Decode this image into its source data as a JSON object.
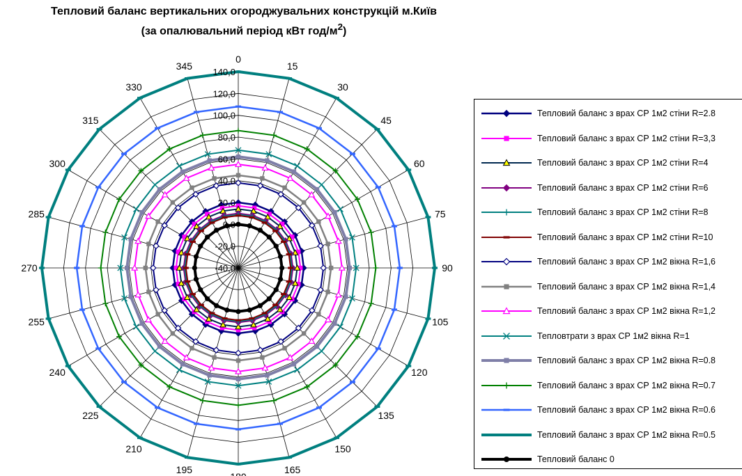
{
  "chart_data": {
    "type": "radar",
    "title": "Тепловий баланс вертикальних огороджувальних конструкцій м.Київ",
    "subtitle_text": "(за опалювальний період кВт год/м",
    "subtitle_sup": "2",
    "subtitle_end": ")",
    "angle_labels": [
      "0",
      "15",
      "30",
      "45",
      "60",
      "75",
      "90",
      "105",
      "120",
      "135",
      "150",
      "165",
      "180",
      "195",
      "210",
      "225",
      "240",
      "255",
      "270",
      "285",
      "300",
      "315",
      "330",
      "345"
    ],
    "rlim": [
      -40,
      140
    ],
    "r_tick_labels": [
      "-40,0",
      "-20,0",
      "0,0",
      "20,0",
      "40,0",
      "60,0",
      "80,0",
      "100,0",
      "120,0",
      "140,0"
    ],
    "grid": true,
    "legend_position": "right",
    "series": [
      {
        "name": "Тепловий баланс з врах СР 1м2 стіни R=2.8",
        "color": "#00007f",
        "marker": "diamond",
        "values": [
          20,
          20,
          20,
          20,
          20,
          20,
          20,
          20,
          20,
          20,
          20,
          20,
          20,
          20,
          20,
          20,
          20,
          20,
          20,
          20,
          20,
          20,
          20,
          20
        ]
      },
      {
        "name": "Тепловий баланс з врах СР 1м2 стіни R=3,3",
        "color": "#ff00ff",
        "marker": "square",
        "values": [
          17,
          17,
          17,
          17,
          17,
          17,
          17,
          17,
          17,
          17,
          17,
          17,
          17,
          17,
          17,
          17,
          17,
          17,
          17,
          17,
          17,
          17,
          17,
          17
        ]
      },
      {
        "name": "Тепловий баланс з врах СР 1м2 стіни R=4",
        "color": "#00284f",
        "marker": "triangle",
        "values": [
          14,
          14,
          14,
          14,
          14,
          14,
          14,
          14,
          14,
          14,
          14,
          14,
          14,
          14,
          14,
          14,
          14,
          14,
          14,
          14,
          14,
          14,
          14,
          14
        ]
      },
      {
        "name": "Тепловий баланс з врах СР 1м2 стіни R=6",
        "color": "#800080",
        "marker": "diamond",
        "values": [
          10,
          10,
          10,
          10,
          10,
          10,
          10,
          10,
          10,
          10,
          10,
          10,
          10,
          10,
          10,
          10,
          10,
          10,
          10,
          10,
          10,
          10,
          10,
          10
        ]
      },
      {
        "name": "Тепловий баланс з врах СР 1м2 стіни R=8",
        "color": "#008080",
        "marker": "plus",
        "values": [
          9,
          9,
          9,
          9,
          9,
          9,
          9,
          9,
          9,
          9,
          9,
          9,
          9,
          9,
          9,
          9,
          9,
          9,
          9,
          9,
          9,
          9,
          9,
          9
        ]
      },
      {
        "name": "Тепловий баланс з врах СР 1м2 стіни R=10",
        "color": "#800000",
        "marker": "dash",
        "values": [
          8,
          8,
          8,
          8,
          8,
          8,
          8,
          8,
          8,
          8,
          8,
          8,
          8,
          8,
          8,
          8,
          8,
          8,
          8,
          8,
          8,
          8,
          8,
          8
        ]
      },
      {
        "name": "Тепловий баланс з врах СР 1м2 вікна R=1,6",
        "color": "#00007f",
        "marker": "diamond-open",
        "values": [
          38,
          38,
          38,
          38,
          38,
          38,
          38,
          38,
          38,
          38,
          38,
          38,
          38,
          38,
          38,
          38,
          38,
          38,
          38,
          38,
          38,
          38,
          38,
          38
        ]
      },
      {
        "name": "Тепловий баланс з врах СР 1м2 вікна R=1,4",
        "color": "#808080",
        "marker": "square",
        "values": [
          45,
          45,
          45,
          45,
          45,
          45,
          45,
          45,
          45,
          45,
          45,
          45,
          45,
          45,
          45,
          45,
          45,
          45,
          45,
          45,
          45,
          45,
          45,
          45
        ]
      },
      {
        "name": "Тепловий баланс з врах СР 1м2 вікна R=1,2",
        "color": "#ff00ff",
        "marker": "triangle-open",
        "values": [
          55,
          55,
          55,
          55,
          55,
          55,
          55,
          55,
          55,
          55,
          55,
          55,
          55,
          55,
          55,
          55,
          55,
          55,
          55,
          55,
          55,
          55,
          55,
          55
        ]
      },
      {
        "name": "Тепловтрати з врах СР 1м2 вікна R=1",
        "color": "#008080",
        "marker": "x",
        "values": [
          68,
          68,
          68,
          68,
          68,
          68,
          68,
          68,
          68,
          68,
          68,
          68,
          68,
          68,
          68,
          68,
          68,
          68,
          68,
          68,
          68,
          68,
          68,
          68
        ]
      },
      {
        "name": "Тепловий баланс з врах СР 1м2 вікна R=0.8",
        "color": "#7f7fa8",
        "marker": "square",
        "values": [
          62,
          62,
          62,
          62,
          62,
          62,
          62,
          62,
          62,
          62,
          62,
          62,
          62,
          62,
          62,
          62,
          62,
          62,
          62,
          62,
          62,
          62,
          62,
          62
        ]
      },
      {
        "name": "Тепловий баланс з врах СР 1м2 вікна R=0.7",
        "color": "#008000",
        "marker": "plus",
        "values": [
          86,
          86,
          86,
          86,
          86,
          86,
          86,
          86,
          86,
          86,
          86,
          86,
          86,
          86,
          86,
          86,
          86,
          86,
          86,
          86,
          86,
          86,
          86,
          86
        ]
      },
      {
        "name": "Тепловий баланс з врах СР 1м2 вікна R=0.6",
        "color": "#3366ff",
        "marker": "dash",
        "values": [
          108,
          108,
          108,
          108,
          108,
          108,
          108,
          108,
          108,
          108,
          108,
          108,
          108,
          108,
          108,
          108,
          108,
          108,
          108,
          108,
          108,
          108,
          108,
          108
        ]
      },
      {
        "name": "Тепловий баланс з врах СР 1м2 вікна R=0.5",
        "color": "#007f7f",
        "marker": "dash",
        "values": [
          140,
          140,
          140,
          140,
          140,
          140,
          140,
          140,
          140,
          140,
          140,
          140,
          140,
          140,
          140,
          140,
          140,
          140,
          140,
          140,
          140,
          140,
          140,
          140
        ]
      },
      {
        "name": "Тепловий баланс 0",
        "color": "#000000",
        "marker": "circle",
        "values": [
          0,
          0,
          0,
          0,
          0,
          0,
          0,
          0,
          0,
          0,
          0,
          0,
          0,
          0,
          0,
          0,
          0,
          0,
          0,
          0,
          0,
          0,
          0,
          0
        ]
      }
    ]
  }
}
